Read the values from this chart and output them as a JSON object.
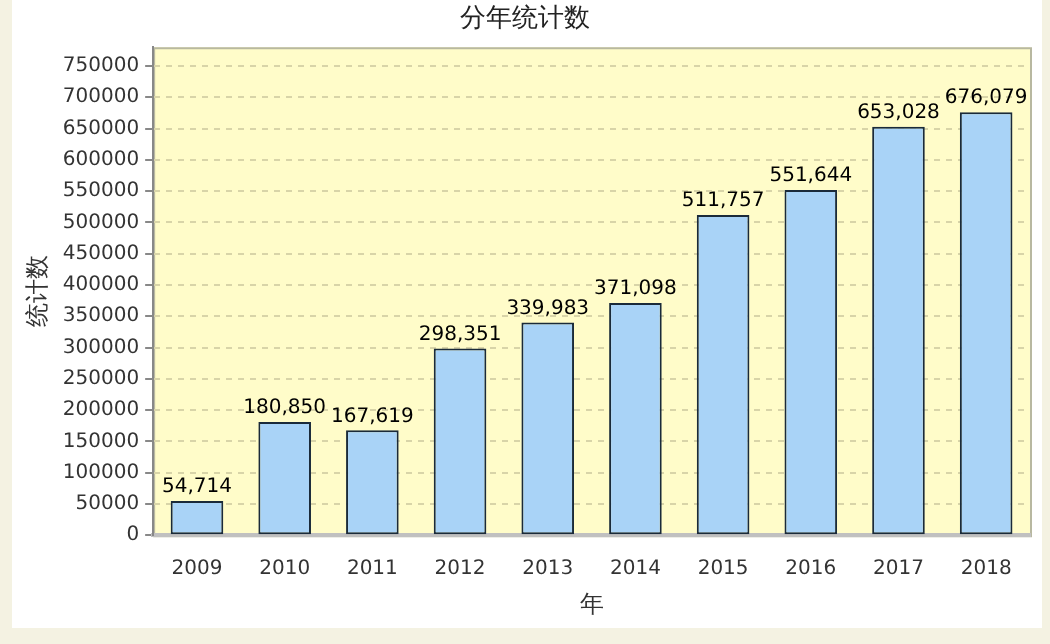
{
  "chart_data": {
    "type": "bar",
    "title": "分年统计数",
    "xlabel": "年",
    "ylabel": "统计数",
    "categories": [
      "2009",
      "2010",
      "2011",
      "2012",
      "2013",
      "2014",
      "2015",
      "2016",
      "2017",
      "2018"
    ],
    "values": [
      54714,
      180850,
      167619,
      298351,
      339983,
      371098,
      511757,
      551644,
      653028,
      676079
    ],
    "value_labels": [
      "54,714",
      "180,850",
      "167,619",
      "298,351",
      "339,983",
      "371,098",
      "511,757",
      "551,644",
      "653,028",
      "676,079"
    ],
    "color": "#a9d3f7",
    "ylim": [
      0,
      780000
    ],
    "yticks": [
      0,
      50000,
      100000,
      150000,
      200000,
      250000,
      300000,
      350000,
      400000,
      450000,
      500000,
      550000,
      600000,
      650000,
      700000,
      750000
    ],
    "grid": "y",
    "legend": false
  }
}
